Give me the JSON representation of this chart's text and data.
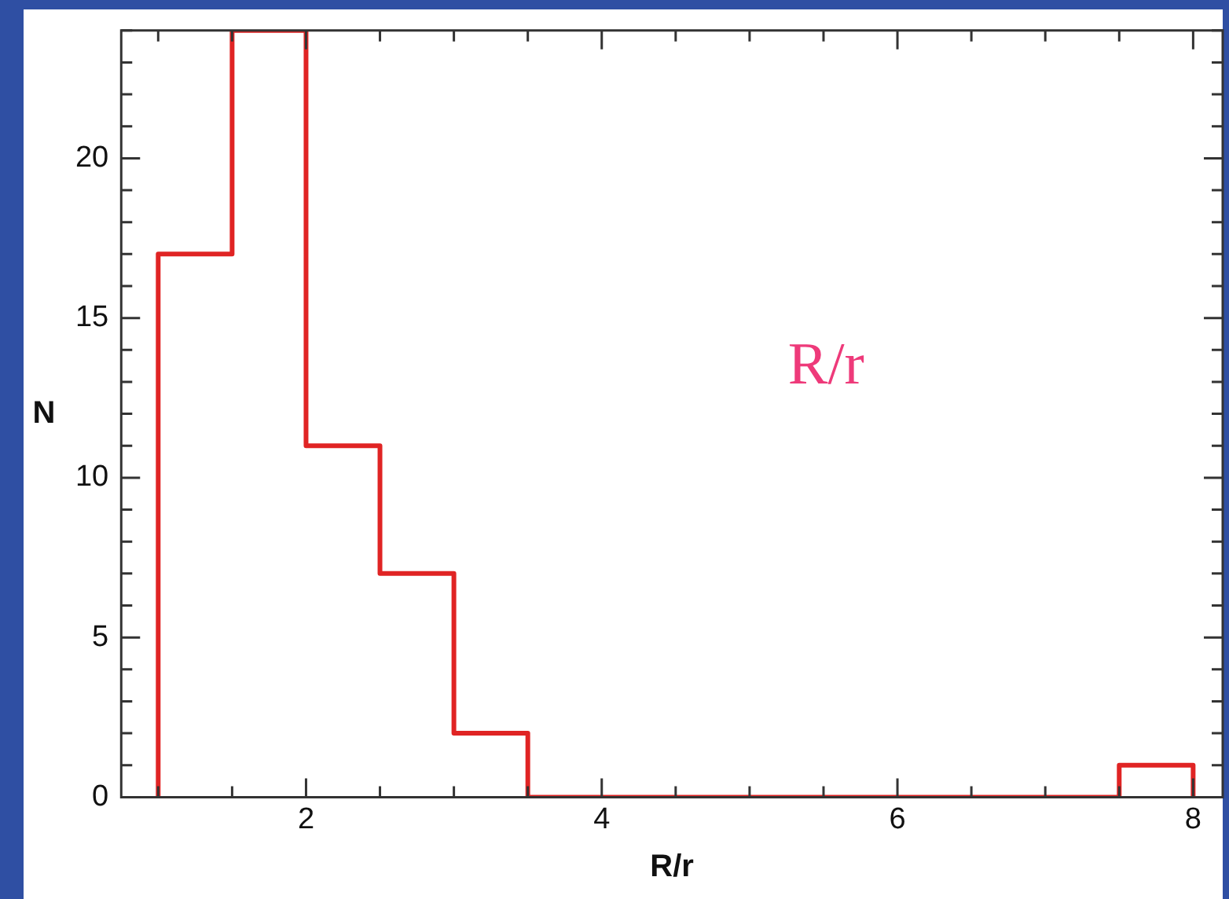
{
  "chart_data": {
    "type": "histogram",
    "xlabel": "R/r",
    "ylabel": "N",
    "annotations": [
      "R/r"
    ],
    "bins": [
      1,
      1.5,
      2,
      2.5,
      3,
      3.5,
      4,
      4.5,
      5,
      5.5,
      6,
      6.5,
      7,
      7.5,
      8
    ],
    "values": [
      17,
      24,
      11,
      7,
      2,
      0,
      0,
      0,
      0,
      0,
      0,
      0,
      0,
      1
    ],
    "color": "#e02424",
    "xlim": [
      0.75,
      8.2
    ],
    "ylim": [
      0,
      24
    ],
    "xticks": [
      {
        "value": 1,
        "label": null
      },
      {
        "value": 1.5,
        "label": null
      },
      2,
      {
        "value": 2.5,
        "label": null
      },
      {
        "value": 3,
        "label": null
      },
      {
        "value": 3.5,
        "label": null
      },
      4,
      {
        "value": 4.5,
        "label": null
      },
      {
        "value": 5,
        "label": null
      },
      {
        "value": 5.5,
        "label": null
      },
      6,
      {
        "value": 6.5,
        "label": null
      },
      {
        "value": 7,
        "label": null
      },
      {
        "value": 7.5,
        "label": null
      },
      8
    ],
    "yticks": [
      0,
      {
        "value": 1,
        "label": null
      },
      {
        "value": 2,
        "label": null
      },
      {
        "value": 3,
        "label": null
      },
      {
        "value": 4,
        "label": null
      },
      5,
      {
        "value": 6,
        "label": null
      },
      {
        "value": 7,
        "label": null
      },
      {
        "value": 8,
        "label": null
      },
      {
        "value": 9,
        "label": null
      },
      10,
      {
        "value": 11,
        "label": null
      },
      {
        "value": 12,
        "label": null
      },
      {
        "value": 13,
        "label": null
      },
      {
        "value": 14,
        "label": null
      },
      15,
      {
        "value": 16,
        "label": null
      },
      {
        "value": 17,
        "label": null
      },
      {
        "value": 18,
        "label": null
      },
      {
        "value": 19,
        "label": null
      },
      20,
      {
        "value": 21,
        "label": null
      },
      {
        "value": 22,
        "label": null
      },
      {
        "value": 23,
        "label": null
      },
      {
        "value": 24,
        "label": null
      }
    ],
    "grid": false,
    "legend": false
  }
}
